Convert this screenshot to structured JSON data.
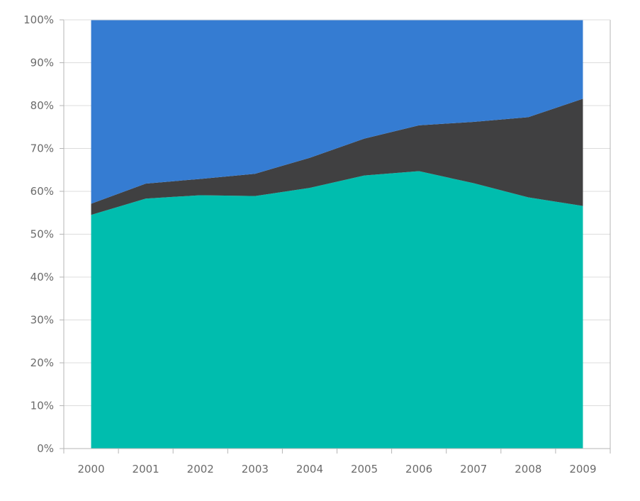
{
  "chart_data": {
    "type": "area",
    "stacked": "percent",
    "x": [
      "2000",
      "2001",
      "2002",
      "2003",
      "2004",
      "2005",
      "2006",
      "2007",
      "2008",
      "2009"
    ],
    "series": [
      {
        "color": "#00bdae",
        "values": [
          54.5,
          58.3,
          59.1,
          58.9,
          60.8,
          63.7,
          64.7,
          61.9,
          58.6,
          56.6
        ]
      },
      {
        "color": "#404041",
        "values": [
          2.6,
          3.5,
          3.8,
          5.2,
          7.0,
          8.6,
          10.7,
          14.3,
          18.7,
          25.0
        ]
      },
      {
        "color": "#357cd2",
        "values": [
          42.9,
          38.2,
          37.1,
          35.9,
          32.2,
          27.7,
          24.6,
          23.8,
          22.7,
          18.4
        ]
      }
    ],
    "y_ticks": [
      "0%",
      "10%",
      "20%",
      "30%",
      "40%",
      "50%",
      "60%",
      "70%",
      "80%",
      "90%",
      "100%"
    ],
    "ylim": [
      0,
      100
    ],
    "grid": true,
    "legend": "none"
  }
}
